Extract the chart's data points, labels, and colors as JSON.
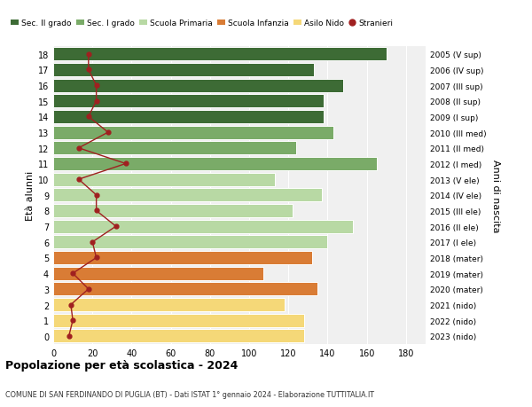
{
  "ages": [
    0,
    1,
    2,
    3,
    4,
    5,
    6,
    7,
    8,
    9,
    10,
    11,
    12,
    13,
    14,
    15,
    16,
    17,
    18
  ],
  "bar_values": [
    128,
    128,
    118,
    135,
    107,
    132,
    140,
    153,
    122,
    137,
    113,
    165,
    124,
    143,
    138,
    138,
    148,
    133,
    170
  ],
  "right_labels": [
    "2023 (nido)",
    "2022 (nido)",
    "2021 (nido)",
    "2020 (mater)",
    "2019 (mater)",
    "2018 (mater)",
    "2017 (I ele)",
    "2016 (II ele)",
    "2015 (III ele)",
    "2014 (IV ele)",
    "2013 (V ele)",
    "2012 (I med)",
    "2011 (II med)",
    "2010 (III med)",
    "2009 (I sup)",
    "2008 (II sup)",
    "2007 (III sup)",
    "2006 (IV sup)",
    "2005 (V sup)"
  ],
  "stranieri_values": [
    8,
    10,
    9,
    18,
    10,
    22,
    20,
    32,
    22,
    22,
    13,
    37,
    13,
    28,
    18,
    22,
    22,
    18,
    18
  ],
  "colors": {
    "sec2": "#3d6b35",
    "sec1": "#7aab68",
    "primaria": "#b8d9a4",
    "infanzia": "#d97c35",
    "nido": "#f5d878",
    "stranieri": "#a02020"
  },
  "legend_labels": [
    "Sec. II grado",
    "Sec. I grado",
    "Scuola Primaria",
    "Scuola Infanzia",
    "Asilo Nido",
    "Stranieri"
  ],
  "legend_colors": [
    "#3d6b35",
    "#7aab68",
    "#b8d9a4",
    "#d97c35",
    "#f5d878",
    "#a02020"
  ],
  "ylabel_left": "Età alunni",
  "ylabel_right": "Anni di nascita",
  "title": "Popolazione per età scolastica - 2024",
  "subtitle": "COMUNE DI SAN FERDINANDO DI PUGLIA (BT) - Dati ISTAT 1° gennaio 2024 - Elaborazione TUTTITALIA.IT",
  "xlim": [
    0,
    190
  ],
  "xticks": [
    0,
    20,
    40,
    60,
    80,
    100,
    120,
    140,
    160,
    180
  ],
  "bg_color": "#ffffff",
  "plot_bg_color": "#f0f0f0"
}
